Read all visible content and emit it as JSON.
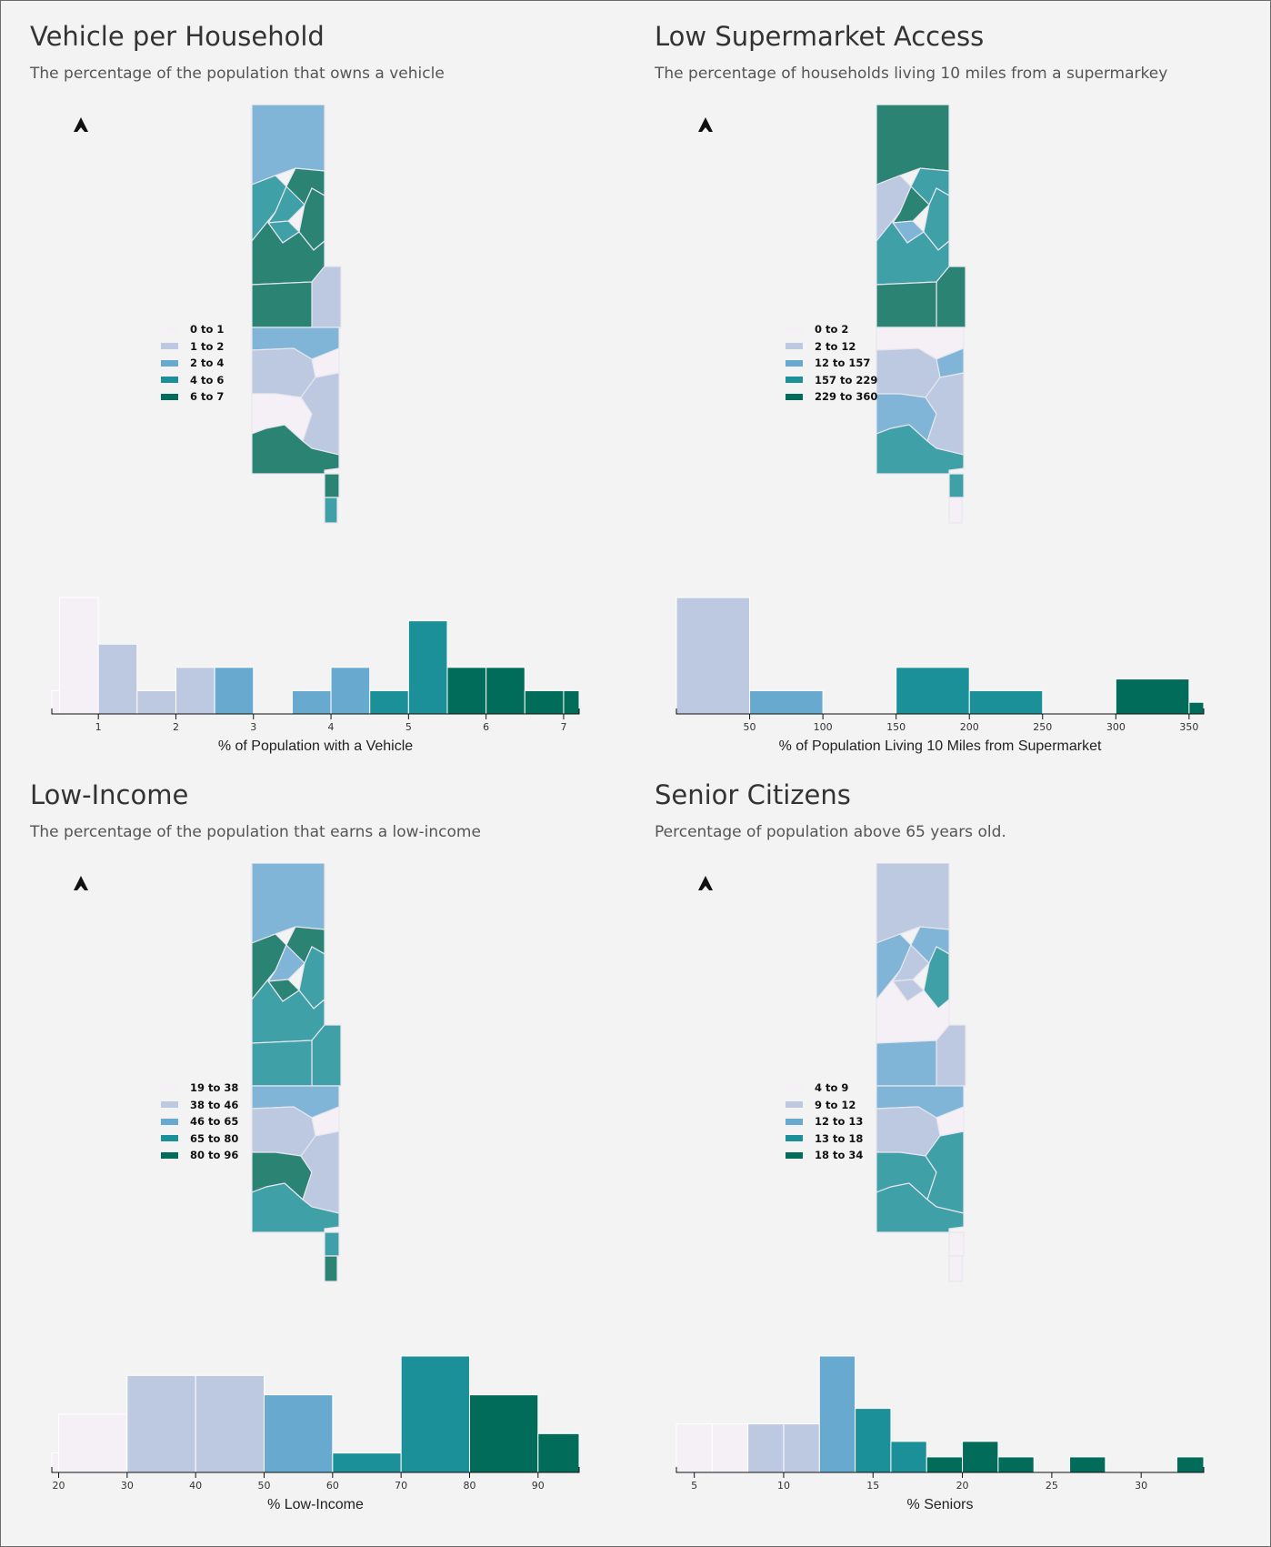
{
  "colors": {
    "c0": "#f4f0f6",
    "c1": "#bdc9e1",
    "c2": "#67a9cf",
    "c3": "#1c9099",
    "c4": "#016c59",
    "map_c3": "#3fa0a7",
    "map_c4": "#2a8373",
    "map_c2": "#80b5d8"
  },
  "panels": [
    {
      "title": "Vehicle per Household",
      "subtitle": "The percentage of the population that owns a vehicle",
      "legend": [
        "0 to 1",
        "1 to 2",
        "2 to 4",
        "4 to 6",
        "6 to 7"
      ],
      "map_colors": [
        "c2",
        "c3",
        "c4",
        "c3",
        "c4",
        "c3",
        "c4",
        "c1",
        "c4",
        "c2",
        "c0",
        "c1",
        "c0",
        "c1",
        "c4",
        "c4",
        "c3"
      ],
      "chart_data": {
        "type": "bar",
        "xlabel": "% of Population with a Vehicle",
        "xlim": [
          0.4,
          7.2
        ],
        "xticks": [
          1,
          2,
          3,
          4,
          5,
          6,
          7
        ],
        "bins": [
          {
            "x0": 0.4,
            "x1": 0.5,
            "count": 1,
            "class": 0
          },
          {
            "x0": 0.5,
            "x1": 1.0,
            "count": 5,
            "class": 0
          },
          {
            "x0": 1.0,
            "x1": 1.5,
            "count": 3,
            "class": 1
          },
          {
            "x0": 1.5,
            "x1": 2.0,
            "count": 1,
            "class": 1
          },
          {
            "x0": 2.0,
            "x1": 2.5,
            "count": 2,
            "class": 1
          },
          {
            "x0": 2.5,
            "x1": 3.0,
            "count": 2,
            "class": 2
          },
          {
            "x0": 3.5,
            "x1": 4.0,
            "count": 1,
            "class": 2
          },
          {
            "x0": 4.0,
            "x1": 4.5,
            "count": 2,
            "class": 2
          },
          {
            "x0": 4.5,
            "x1": 5.0,
            "count": 1,
            "class": 3
          },
          {
            "x0": 5.0,
            "x1": 5.5,
            "count": 4,
            "class": 3
          },
          {
            "x0": 5.5,
            "x1": 6.0,
            "count": 2,
            "class": 4
          },
          {
            "x0": 6.0,
            "x1": 6.5,
            "count": 2,
            "class": 4
          },
          {
            "x0": 6.5,
            "x1": 7.0,
            "count": 1,
            "class": 4
          },
          {
            "x0": 7.0,
            "x1": 7.2,
            "count": 1,
            "class": 4
          }
        ],
        "ymax": 5
      }
    },
    {
      "title": "Low Supermarket Access",
      "subtitle": "The percentage of households living 10 miles from a supermarkey",
      "legend": [
        "0 to 2",
        "2 to 12",
        "12 to 157",
        "157 to 229",
        "229 to 360"
      ],
      "map_colors": [
        "c4",
        "c1",
        "c3",
        "c4",
        "c3",
        "c2",
        "c3",
        "c4",
        "c4",
        "c0",
        "c2",
        "c1",
        "c2",
        "c1",
        "c3",
        "c3",
        "c0"
      ],
      "chart_data": {
        "type": "bar",
        "xlabel": "% of Population Living 10 Miles from Supermarket",
        "xlim": [
          0,
          360
        ],
        "xticks": [
          50,
          100,
          150,
          200,
          250,
          300,
          350
        ],
        "bins": [
          {
            "x0": 0,
            "x1": 50,
            "count": 5,
            "class": 1
          },
          {
            "x0": 50,
            "x1": 100,
            "count": 1,
            "class": 2
          },
          {
            "x0": 150,
            "x1": 200,
            "count": 2,
            "class": 3
          },
          {
            "x0": 200,
            "x1": 250,
            "count": 1,
            "class": 3
          },
          {
            "x0": 300,
            "x1": 350,
            "count": 1.5,
            "class": 4
          },
          {
            "x0": 350,
            "x1": 360,
            "count": 0.5,
            "class": 4
          }
        ],
        "ymax": 5
      }
    },
    {
      "title": "Low-Income",
      "subtitle": "The percentage of the population that earns a low-income",
      "legend": [
        "19 to 38",
        "38 to 46",
        "46 to 65",
        "65 to 80",
        "80 to 96"
      ],
      "map_colors": [
        "c2",
        "c4",
        "c4",
        "c2",
        "c3",
        "c4",
        "c3",
        "c3",
        "c3",
        "c2",
        "c0",
        "c1",
        "c4",
        "c1",
        "c3",
        "c3",
        "c4"
      ],
      "chart_data": {
        "type": "bar",
        "xlabel": "% Low-Income",
        "xlim": [
          19,
          96
        ],
        "xticks": [
          20,
          30,
          40,
          50,
          60,
          70,
          80,
          90
        ],
        "bins": [
          {
            "x0": 19,
            "x1": 20,
            "count": 1,
            "class": 0
          },
          {
            "x0": 20,
            "x1": 30,
            "count": 3,
            "class": 0
          },
          {
            "x0": 30,
            "x1": 40,
            "count": 5,
            "class": 1
          },
          {
            "x0": 40,
            "x1": 50,
            "count": 5,
            "class": 1
          },
          {
            "x0": 50,
            "x1": 60,
            "count": 4,
            "class": 2
          },
          {
            "x0": 60,
            "x1": 70,
            "count": 1,
            "class": 3
          },
          {
            "x0": 70,
            "x1": 80,
            "count": 6,
            "class": 3
          },
          {
            "x0": 80,
            "x1": 90,
            "count": 4,
            "class": 4
          },
          {
            "x0": 90,
            "x1": 96,
            "count": 2,
            "class": 4
          }
        ],
        "ymax": 6
      }
    },
    {
      "title": "Senior Citizens",
      "subtitle": "Percentage of population above 65 years old.",
      "legend": [
        "4 to 9",
        "9 to 12",
        "12 to 13",
        "13 to 18",
        "18 to 34"
      ],
      "map_colors": [
        "c1",
        "c2",
        "c2",
        "c1",
        "c3",
        "c1",
        "c0",
        "c1",
        "c2",
        "c2",
        "c0",
        "c1",
        "c3",
        "c3",
        "c3",
        "c0",
        "c0"
      ],
      "chart_data": {
        "type": "bar",
        "xlabel": "% Seniors",
        "xlim": [
          4,
          33.5
        ],
        "xticks": [
          5,
          10,
          15,
          20,
          25,
          30
        ],
        "bins": [
          {
            "x0": 4,
            "x1": 6,
            "count": 2.5,
            "class": 0
          },
          {
            "x0": 6,
            "x1": 8,
            "count": 2.5,
            "class": 0
          },
          {
            "x0": 8,
            "x1": 10,
            "count": 2.5,
            "class": 1
          },
          {
            "x0": 10,
            "x1": 12,
            "count": 2.5,
            "class": 1
          },
          {
            "x0": 12,
            "x1": 14,
            "count": 6,
            "class": 2
          },
          {
            "x0": 14,
            "x1": 16,
            "count": 3.3,
            "class": 3
          },
          {
            "x0": 16,
            "x1": 18,
            "count": 1.6,
            "class": 3
          },
          {
            "x0": 18,
            "x1": 20,
            "count": 0.8,
            "class": 4
          },
          {
            "x0": 20,
            "x1": 22,
            "count": 1.6,
            "class": 4
          },
          {
            "x0": 22,
            "x1": 24,
            "count": 0.8,
            "class": 4
          },
          {
            "x0": 26,
            "x1": 28,
            "count": 0.8,
            "class": 4
          },
          {
            "x0": 32,
            "x1": 33.5,
            "count": 0.8,
            "class": 4
          }
        ],
        "ymax": 6
      }
    }
  ]
}
